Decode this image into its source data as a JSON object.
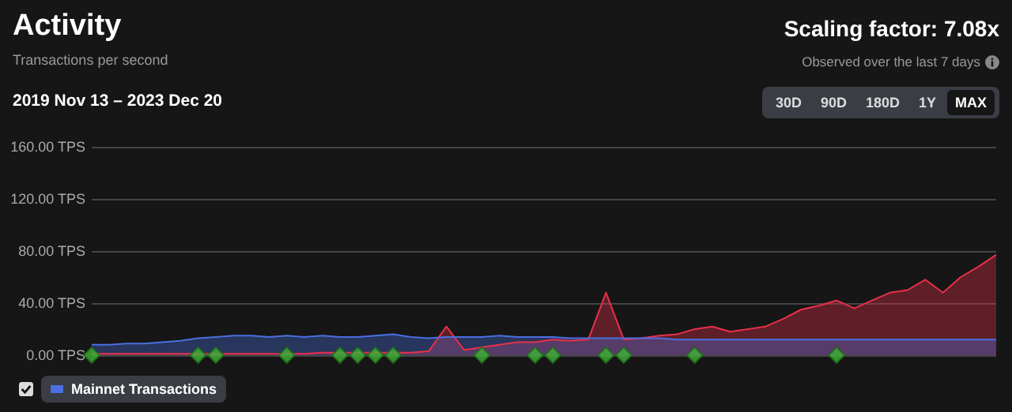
{
  "chart_data": {
    "type": "area",
    "title": "Activity",
    "subtitle": "Transactions per second",
    "annotations": [
      "2019 Nov 13 – 2023 Dec 20",
      "Scaling factor: 7.08x",
      "Observed over the last 7 days",
      "30D",
      "90D",
      "180D",
      "1Y",
      "MAX"
    ],
    "categories": [
      null,
      null,
      null,
      null,
      null,
      null,
      null,
      null,
      null,
      null,
      null,
      null,
      null,
      null,
      null,
      null,
      null,
      null,
      null,
      null,
      null,
      null,
      null,
      null,
      null,
      null,
      null,
      null,
      null,
      null,
      null,
      null,
      null,
      null,
      null,
      null,
      null,
      null,
      null,
      null,
      null,
      null,
      null,
      null,
      null,
      null,
      null,
      null,
      null,
      null,
      null,
      null
    ],
    "series": [
      {
        "color": "#e8304a",
        "values": [
          1,
          1,
          1,
          1,
          1,
          1,
          1,
          1,
          1,
          1,
          1,
          1,
          1,
          2,
          2,
          2,
          2,
          2,
          2,
          3,
          22,
          4,
          6,
          8,
          10,
          10,
          12,
          11,
          12,
          48,
          12,
          13,
          15,
          16,
          20,
          22,
          18,
          20,
          22,
          28,
          35,
          38,
          42,
          36,
          42,
          48,
          50,
          58,
          48,
          60,
          68,
          77
        ]
      },
      {
        "name": "Mainnet Transactions",
        "color": "#4a6fe0",
        "values": [
          8,
          8,
          9,
          9,
          10,
          11,
          13,
          14,
          15,
          15,
          14,
          15,
          14,
          15,
          14,
          14,
          15,
          16,
          14,
          13,
          14,
          14,
          14,
          15,
          14,
          14,
          14,
          13,
          13,
          13,
          13,
          13,
          13,
          12,
          12,
          12,
          12,
          12,
          12,
          12,
          12,
          12,
          12,
          12,
          12,
          12,
          12,
          12,
          12,
          12,
          12,
          12
        ]
      },
      {
        "type": "scatter",
        "marker": "diamond",
        "color": "#3fb337",
        "values": [
          0,
          null,
          null,
          null,
          null,
          null,
          0,
          0,
          null,
          null,
          null,
          0,
          null,
          null,
          0,
          0,
          0,
          0,
          null,
          null,
          null,
          null,
          0,
          null,
          null,
          0,
          0,
          null,
          null,
          0,
          0,
          null,
          null,
          null,
          0,
          null,
          null,
          null,
          null,
          null,
          null,
          null,
          0,
          null,
          null,
          null,
          null,
          null,
          null,
          null,
          null,
          null
        ]
      }
    ],
    "ylim": [
      0,
      160
    ],
    "yticks": [
      {
        "value": 0,
        "label": "0.00 TPS"
      },
      {
        "value": 40,
        "label": "40.00 TPS"
      },
      {
        "value": 80,
        "label": "80.00 TPS"
      },
      {
        "value": 120,
        "label": "120.00 TPS"
      },
      {
        "value": 160,
        "label": "160.00 TPS"
      }
    ],
    "tick_labels": "y",
    "grid": "y",
    "legend": "bottom left"
  }
}
